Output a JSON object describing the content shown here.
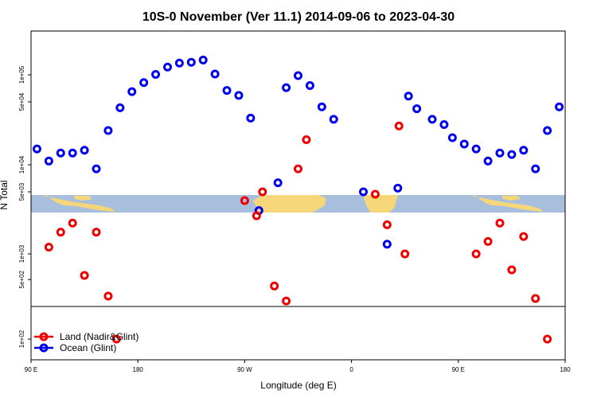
{
  "chart_data": {
    "type": "scatter",
    "title": "10S-0 November (Ver 11.1)   2014-09-06 to 2023-04-30",
    "xlabel": "Longitude (deg E)",
    "ylabel": "N Total",
    "x_ticks": [
      {
        "value": 0,
        "label": "90 E"
      },
      {
        "value": 90,
        "label": "180"
      },
      {
        "value": 180,
        "label": "90 W"
      },
      {
        "value": 270,
        "label": "0"
      },
      {
        "value": 360,
        "label": "90 E"
      },
      {
        "value": 450,
        "label": "180"
      }
    ],
    "xlim": [
      0,
      450
    ],
    "y_ticks": [
      {
        "value": 100,
        "label": "1e+02"
      },
      {
        "value": 500,
        "label": "5e+02"
      },
      {
        "value": 1000,
        "label": "1e+03"
      },
      {
        "value": 5000,
        "label": "5e+03"
      },
      {
        "value": 10000,
        "label": "1e+04"
      },
      {
        "value": 50000,
        "label": "5e+04"
      },
      {
        "value": 100000,
        "label": "1e+05"
      }
    ],
    "y_scale": "log",
    "y_panels": [
      {
        "name": "top",
        "ylim": [
          4000,
          200000
        ]
      },
      {
        "name": "bottom",
        "ylim": [
          30,
          2500
        ]
      }
    ],
    "map_band_colors": {
      "ocean": "#a7bedc",
      "land": "#f5d77a"
    },
    "legend": {
      "position": "bottom-left",
      "entries": [
        "Land (Nadir&Glint)",
        "Ocean (Glint)"
      ]
    },
    "series": [
      {
        "name": "Ocean (Glint)",
        "color": "#0000ee",
        "points": [
          {
            "x": 5,
            "y": 15000
          },
          {
            "x": 15,
            "y": 11000
          },
          {
            "x": 25,
            "y": 13500
          },
          {
            "x": 35,
            "y": 13500
          },
          {
            "x": 45,
            "y": 14500
          },
          {
            "x": 55,
            "y": 9000
          },
          {
            "x": 65,
            "y": 24000
          },
          {
            "x": 75,
            "y": 43000
          },
          {
            "x": 85,
            "y": 65000
          },
          {
            "x": 95,
            "y": 82000
          },
          {
            "x": 105,
            "y": 101000
          },
          {
            "x": 115,
            "y": 122000
          },
          {
            "x": 125,
            "y": 135000
          },
          {
            "x": 135,
            "y": 138000
          },
          {
            "x": 145,
            "y": 146000
          },
          {
            "x": 155,
            "y": 102000
          },
          {
            "x": 165,
            "y": 67000
          },
          {
            "x": 175,
            "y": 59000
          },
          {
            "x": 185,
            "y": 33000
          },
          {
            "x": 192,
            "y": 3100
          },
          {
            "x": 208,
            "y": 6300
          },
          {
            "x": 215,
            "y": 72000
          },
          {
            "x": 225,
            "y": 98000
          },
          {
            "x": 235,
            "y": 76000
          },
          {
            "x": 245,
            "y": 44000
          },
          {
            "x": 255,
            "y": 32000
          },
          {
            "x": 280,
            "y": 5000
          },
          {
            "x": 300,
            "y": 1300
          },
          {
            "x": 309,
            "y": 5500
          },
          {
            "x": 318,
            "y": 58000
          },
          {
            "x": 325,
            "y": 42000
          },
          {
            "x": 338,
            "y": 32000
          },
          {
            "x": 348,
            "y": 28000
          },
          {
            "x": 355,
            "y": 20000
          },
          {
            "x": 365,
            "y": 17000
          },
          {
            "x": 375,
            "y": 15000
          },
          {
            "x": 385,
            "y": 11000
          },
          {
            "x": 395,
            "y": 13500
          },
          {
            "x": 405,
            "y": 13000
          },
          {
            "x": 415,
            "y": 14500
          },
          {
            "x": 425,
            "y": 9000
          },
          {
            "x": 435,
            "y": 24000
          },
          {
            "x": 445,
            "y": 44000
          },
          {
            "x": 455,
            "y": 65000
          }
        ]
      },
      {
        "name": "Land (Nadir&Glint)",
        "color": "#ee0000",
        "points": [
          {
            "x": 15,
            "y": 1200
          },
          {
            "x": 25,
            "y": 1800
          },
          {
            "x": 35,
            "y": 2300
          },
          {
            "x": 45,
            "y": 560
          },
          {
            "x": 55,
            "y": 1800
          },
          {
            "x": 65,
            "y": 320
          },
          {
            "x": 72,
            "y": 100
          },
          {
            "x": 180,
            "y": 4000
          },
          {
            "x": 190,
            "y": 2800
          },
          {
            "x": 195,
            "y": 5000
          },
          {
            "x": 205,
            "y": 420
          },
          {
            "x": 215,
            "y": 280
          },
          {
            "x": 225,
            "y": 9000
          },
          {
            "x": 232,
            "y": 19000
          },
          {
            "x": 290,
            "y": 4700
          },
          {
            "x": 300,
            "y": 2200
          },
          {
            "x": 310,
            "y": 27000
          },
          {
            "x": 315,
            "y": 1000
          },
          {
            "x": 375,
            "y": 1000
          },
          {
            "x": 385,
            "y": 1400
          },
          {
            "x": 395,
            "y": 2300
          },
          {
            "x": 405,
            "y": 650
          },
          {
            "x": 415,
            "y": 1600
          },
          {
            "x": 425,
            "y": 300
          },
          {
            "x": 435,
            "y": 100
          }
        ]
      }
    ]
  }
}
